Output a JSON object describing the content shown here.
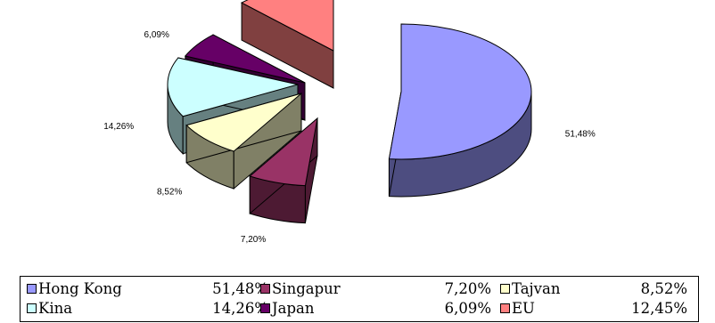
{
  "chart_data": {
    "type": "pie",
    "three_d": true,
    "exploded": true,
    "legend_position": "bottom",
    "slices": [
      {
        "name": "Hong Kong",
        "value": 51.48,
        "label": "51,48%",
        "color": "#9999ff",
        "side_color": "#4d4d80"
      },
      {
        "name": "Singapur",
        "value": 7.2,
        "label": "7,20%",
        "color": "#993366",
        "side_color": "#4d1a33"
      },
      {
        "name": "Tajvan",
        "value": 8.52,
        "label": "8,52%",
        "color": "#ffffcc",
        "side_color": "#808066"
      },
      {
        "name": "Kina",
        "value": 14.26,
        "label": "14,26%",
        "color": "#ccffff",
        "side_color": "#668080"
      },
      {
        "name": "Japan",
        "value": 6.09,
        "label": "6,09%",
        "color": "#660066",
        "side_color": "#330033"
      },
      {
        "name": "EU",
        "value": 12.45,
        "label": "12,45%",
        "color": "#ff8080",
        "side_color": "#804040"
      }
    ]
  },
  "legend": {
    "items": [
      {
        "name": "Hong Kong",
        "value": "51,48%",
        "color": "#9999ff"
      },
      {
        "name": "Singapur",
        "value": "7,20%",
        "color": "#993366"
      },
      {
        "name": "Tajvan",
        "value": "8,52%",
        "color": "#ffffcc"
      },
      {
        "name": "Kina",
        "value": "14,26%",
        "color": "#ccffff"
      },
      {
        "name": "Japan",
        "value": "6,09%",
        "color": "#660066"
      },
      {
        "name": "EU",
        "value": "12,45%",
        "color": "#ff8080"
      }
    ]
  }
}
